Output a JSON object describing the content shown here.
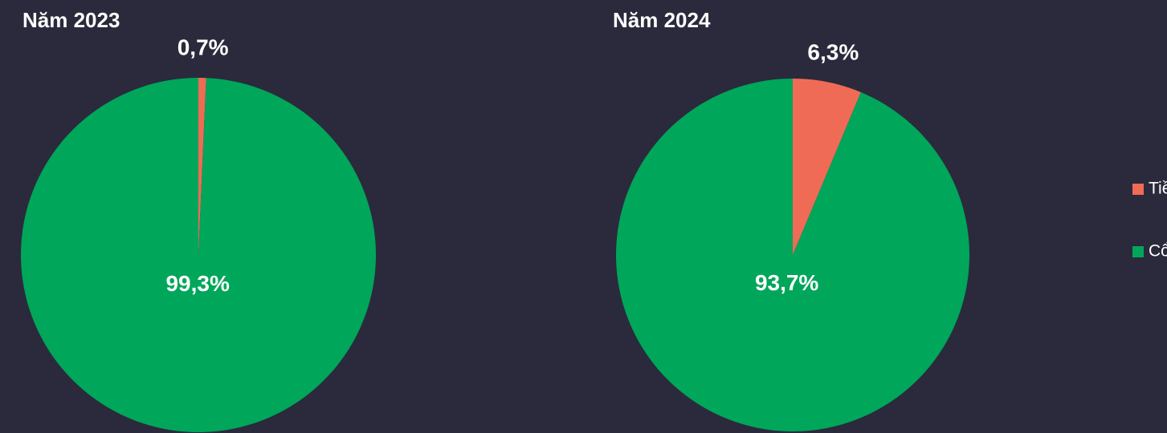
{
  "chart_data": [
    {
      "type": "pie",
      "title": "Năm 2023",
      "values": [
        0.7,
        99.3
      ],
      "value_labels": [
        "0,7%",
        "99,3%"
      ]
    },
    {
      "type": "pie",
      "title": "Năm 2024",
      "values": [
        6.3,
        93.7
      ],
      "value_labels": [
        "6,3%",
        "93,7%"
      ]
    }
  ],
  "legend": {
    "categories": [
      "Tiền mặt",
      "Cổ phiếu"
    ],
    "colors": [
      "#ef6b56",
      "#00a65a"
    ],
    "position": "right"
  }
}
